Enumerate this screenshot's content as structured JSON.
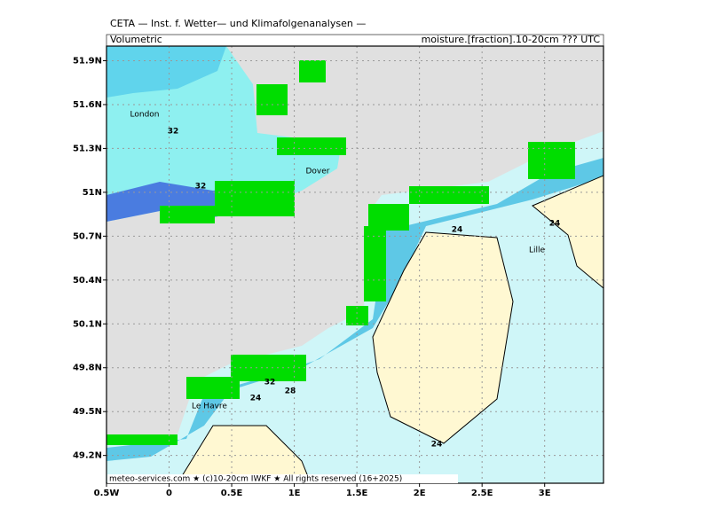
{
  "header": {
    "title": "CETA — Inst. f. Wetter— und Klimafolgenanalysen —",
    "left_label": "Volumetric",
    "right_label": "moisture.[fraction].10-20cm ??? UTC"
  },
  "map": {
    "xlim": [
      -0.5,
      3.47
    ],
    "ylim": [
      49.01,
      52.0
    ],
    "grid": true,
    "xticks": [
      {
        "value": -0.5,
        "label": "0.5W"
      },
      0,
      {
        "value": 0.5,
        "label": "0.5E"
      },
      {
        "value": 1,
        "label": "1E"
      },
      {
        "value": 1.5,
        "label": "1.5E"
      },
      {
        "value": 2,
        "label": "2E"
      },
      {
        "value": 2.5,
        "label": "2.5E"
      },
      {
        "value": 3,
        "label": "3E"
      }
    ],
    "yticks": [
      {
        "value": 49.2,
        "label": "49.2N"
      },
      {
        "value": 49.5,
        "label": "49.5N"
      },
      {
        "value": 49.8,
        "label": "49.8N"
      },
      {
        "value": 50.1,
        "label": "50.1N"
      },
      {
        "value": 50.4,
        "label": "50.4N"
      },
      {
        "value": 50.7,
        "label": "50.7N"
      },
      {
        "value": 51,
        "label": "51N"
      },
      {
        "value": 51.3,
        "label": "51.3N"
      },
      {
        "value": 51.6,
        "label": "51.6N"
      },
      {
        "value": 51.9,
        "label": "51.9N"
      }
    ],
    "places": [
      "London",
      "Dover",
      "Lille",
      "Le Havre"
    ],
    "contour_labels": [
      "32",
      "32",
      "32",
      "24",
      "24",
      "24",
      "24",
      "28"
    ]
  },
  "footer": "meteo-services.com ★ (c)10-20cm IWKF ★ All rights reserved (16+2025)"
}
